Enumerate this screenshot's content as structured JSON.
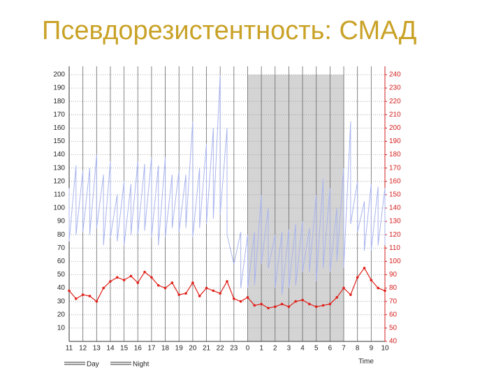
{
  "chart_data": {
    "type": "line",
    "title": "Псевдорезистентность: СМАД",
    "x_label": "Time",
    "legend": [
      "Day",
      "Night"
    ],
    "night_band": [
      24,
      31
    ],
    "xlim": [
      11,
      34
    ],
    "xticks": [
      11,
      12,
      13,
      14,
      15,
      16,
      17,
      18,
      19,
      20,
      21,
      22,
      23,
      {
        "value": 24,
        "label": "0"
      },
      {
        "value": 25,
        "label": "1"
      },
      {
        "value": 26,
        "label": "2"
      },
      {
        "value": 27,
        "label": "3"
      },
      {
        "value": 28,
        "label": "4"
      },
      {
        "value": 29,
        "label": "5"
      },
      {
        "value": 30,
        "label": "6"
      },
      {
        "value": 31,
        "label": "7"
      },
      {
        "value": 32,
        "label": "8"
      },
      {
        "value": 33,
        "label": "9"
      },
      {
        "value": 34,
        "label": "10"
      }
    ],
    "ylim": [
      0,
      200
    ],
    "yticks": [
      10,
      20,
      30,
      40,
      50,
      60,
      70,
      80,
      90,
      100,
      110,
      120,
      130,
      140,
      150,
      160,
      170,
      180,
      190,
      200
    ],
    "y2lim": [
      40,
      240
    ],
    "y2ticks": [
      40,
      50,
      60,
      70,
      80,
      90,
      100,
      110,
      120,
      130,
      140,
      150,
      160,
      170,
      180,
      190,
      200,
      210,
      220,
      230,
      240
    ],
    "grid": true,
    "x": [
      11,
      11.5,
      12,
      12.5,
      13,
      13.5,
      14,
      14.5,
      15,
      15.5,
      16,
      16.5,
      17,
      17.5,
      18,
      18.5,
      19,
      19.5,
      20,
      20.5,
      21,
      21.5,
      22,
      22.5,
      23,
      23.5,
      24,
      24.5,
      25,
      25.5,
      26,
      26.5,
      27,
      27.5,
      28,
      28.5,
      29,
      29.5,
      30,
      30.5,
      31,
      31.5,
      32,
      32.5,
      33,
      33.5,
      34
    ],
    "series": [
      {
        "color": "#a9b4ee",
        "values": [
          115,
          132,
          128,
          130,
          140,
          125,
          135,
          110,
          120,
          118,
          135,
          133,
          138,
          132,
          138,
          125,
          128,
          125,
          165,
          130,
          148,
          160,
          200,
          160,
          58,
          82,
          80,
          82,
          110,
          100,
          80,
          82,
          84,
          88,
          90,
          85,
          110,
          122,
          115,
          100,
          130,
          165,
          120,
          105,
          118,
          116,
          115
        ]
      },
      {
        "color": "#a9b4ee",
        "values": [
          75,
          80,
          82,
          80,
          85,
          72,
          78,
          75,
          72,
          80,
          80,
          83,
          78,
          72,
          78,
          85,
          82,
          85,
          78,
          85,
          88,
          92,
          95,
          80,
          58,
          40,
          40,
          42,
          58,
          55,
          40,
          35,
          40,
          42,
          52,
          52,
          45,
          55,
          52,
          60,
          55,
          88,
          82,
          68,
          68,
          72,
          72
        ]
      },
      {
        "color": "#e0201a",
        "axis": "y2",
        "values": [
          78,
          72,
          75,
          74,
          70,
          80,
          85,
          88,
          86,
          89,
          84,
          92,
          88,
          82,
          80,
          84,
          75,
          76,
          84,
          74,
          80,
          78,
          76,
          85,
          72,
          70,
          73,
          67,
          68,
          65,
          66,
          68,
          66,
          70,
          71,
          68,
          66,
          67,
          68,
          73,
          80,
          75,
          88,
          95,
          86,
          80,
          78
        ]
      }
    ]
  }
}
